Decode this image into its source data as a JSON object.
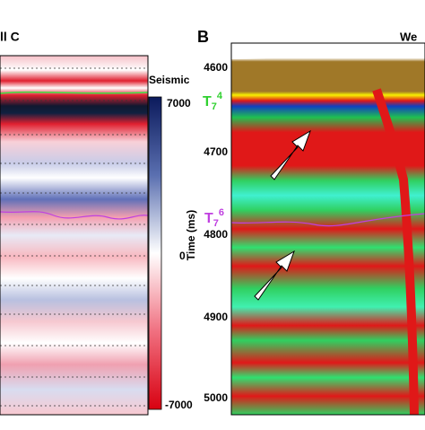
{
  "panel_a": {
    "title": "ll C",
    "colorbar": {
      "label": "Seismic",
      "ticks": [
        7000,
        0,
        -7000
      ]
    }
  },
  "panel_b": {
    "label": "B",
    "title": "We",
    "y_axis": {
      "label": "Time (ms)",
      "ticks": [
        4600,
        4700,
        4800,
        4900,
        5000
      ]
    },
    "horizons": [
      {
        "name": "T",
        "sub": "7",
        "sup": "4"
      },
      {
        "name": "T",
        "sub": "7",
        "sup": "6"
      }
    ]
  }
}
